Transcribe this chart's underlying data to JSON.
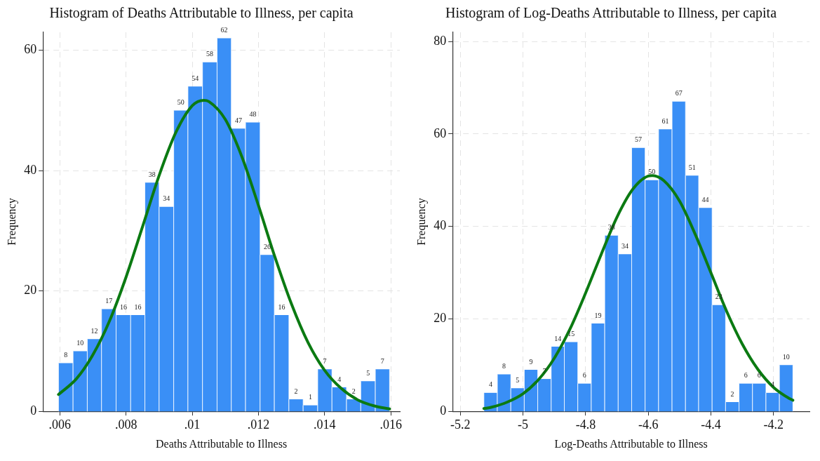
{
  "chart_data": [
    {
      "type": "histogram",
      "title": "Histogram of Deaths Attributable to Illness, per capita",
      "xlabel": "Deaths Attributable to Illness",
      "ylabel": "Frequency",
      "color": "#3a8ff6",
      "value_labels": [
        "8",
        "10",
        "12",
        "17",
        "16",
        "16",
        "38",
        "34",
        "50",
        "54",
        "58",
        "62",
        "47",
        "48",
        "26",
        "16",
        "2",
        "1",
        "7",
        "4",
        "2",
        "5",
        "7"
      ],
      "grid": true,
      "legend": false,
      "bins": [
        0.00596,
        0.0064,
        0.00683,
        0.00726,
        0.0077,
        0.00814,
        0.00857,
        0.009,
        0.00944,
        0.00987,
        0.01031,
        0.01075,
        0.01118,
        0.01161,
        0.01205,
        0.01248,
        0.01292,
        0.01335,
        0.01379,
        0.01422,
        0.01466,
        0.01509,
        0.01553,
        0.01596
      ],
      "values": [
        8,
        10,
        12,
        17,
        16,
        16,
        38,
        34,
        50,
        54,
        58,
        62,
        47,
        48,
        26,
        16,
        2,
        1,
        7,
        4,
        2,
        5,
        7
      ],
      "series": [
        {
          "type": "line",
          "color": "#0b7a12",
          "x": [
            0.00596,
            0.0065,
            0.007,
            0.0075,
            0.008,
            0.0085,
            0.009,
            0.0095,
            0.01,
            0.01035,
            0.0105,
            0.011,
            0.0115,
            0.012,
            0.0125,
            0.013,
            0.0135,
            0.014,
            0.0145,
            0.015,
            0.0155,
            0.01596
          ],
          "values": [
            2.8,
            5.4,
            9.4,
            15.0,
            22.3,
            30.7,
            39.2,
            46.3,
            50.8,
            51.7,
            51.5,
            48.5,
            42.3,
            34.2,
            25.6,
            17.8,
            11.4,
            6.8,
            3.8,
            1.9,
            0.9,
            0.4
          ]
        }
      ],
      "xlim": [
        0.00549,
        0.01627
      ],
      "xticks": [
        {
          "value": 0.006,
          "label": ".006"
        },
        {
          "value": 0.008,
          "label": ".008"
        },
        {
          "value": 0.01,
          "label": ".01"
        },
        {
          "value": 0.012,
          "label": ".012"
        },
        {
          "value": 0.014,
          "label": ".014"
        },
        {
          "value": 0.016,
          "label": ".016"
        }
      ],
      "ylim": [
        0,
        63
      ],
      "yticks": [
        0,
        20,
        40,
        60
      ]
    },
    {
      "type": "histogram",
      "title": "Histogram of Log-Deaths Attributable to Illness, per capita",
      "xlabel": "Log-Deaths Attributable to Illness",
      "ylabel": "Frequency",
      "color": "#3a8ff6",
      "value_labels": [
        "4",
        "8",
        "5",
        "9",
        "7",
        "14",
        "15",
        "6",
        "19",
        "38",
        "34",
        "57",
        "50",
        "61",
        "67",
        "51",
        "44",
        "23",
        "2",
        "6",
        "6",
        "4",
        "10"
      ],
      "grid": true,
      "legend": false,
      "bins": [
        -5.125,
        -5.082,
        -5.039,
        -4.996,
        -4.953,
        -4.91,
        -4.868,
        -4.825,
        -4.782,
        -4.739,
        -4.696,
        -4.653,
        -4.61,
        -4.567,
        -4.524,
        -4.481,
        -4.439,
        -4.396,
        -4.353,
        -4.31,
        -4.267,
        -4.224,
        -4.181,
        -4.138
      ],
      "values": [
        4,
        8,
        5,
        9,
        7,
        14,
        15,
        6,
        19,
        38,
        34,
        57,
        50,
        61,
        67,
        51,
        44,
        23,
        2,
        6,
        6,
        4,
        10
      ],
      "series": [
        {
          "type": "line",
          "color": "#0b7a12",
          "x": [
            -5.125,
            -5.1,
            -5.05,
            -5.0,
            -4.95,
            -4.9,
            -4.85,
            -4.8,
            -4.75,
            -4.7,
            -4.65,
            -4.6,
            -4.587,
            -4.55,
            -4.5,
            -4.45,
            -4.4,
            -4.35,
            -4.3,
            -4.25,
            -4.2,
            -4.15,
            -4.138
          ],
          "values": [
            0.6,
            0.9,
            2.0,
            3.8,
            6.9,
            11.5,
            17.8,
            25.6,
            34.0,
            42.0,
            48.0,
            50.9,
            51.0,
            49.9,
            45.5,
            38.3,
            30.0,
            21.7,
            14.6,
            9.1,
            5.2,
            2.8,
            2.4
          ]
        }
      ],
      "xlim": [
        -5.225,
        -4.085
      ],
      "xticks": [
        -5.2,
        -5,
        -4.8,
        -4.6,
        -4.4,
        -4.2
      ],
      "ylim": [
        0,
        82
      ],
      "yticks": [
        0,
        20,
        40,
        60,
        80
      ]
    }
  ]
}
